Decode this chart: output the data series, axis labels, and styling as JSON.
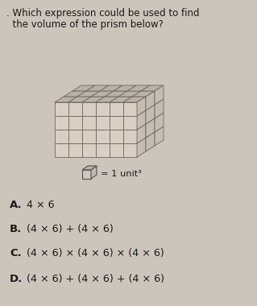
{
  "title_line1": ". Which expression could be used to find",
  "title_line2": "  the volume of the prism below?",
  "unit_label": "= 1 unit³",
  "options": [
    {
      "letter": "A.",
      "text": "4 × 6"
    },
    {
      "letter": "B.",
      "text": "(4 × 6) + (4 × 6)"
    },
    {
      "letter": "C.",
      "text": "(4 × 6) × (4 × 6) × (4 × 6)"
    },
    {
      "letter": "D.",
      "text": "(4 × 6) + (4 × 6) + (4 × 6)"
    }
  ],
  "bg_color": "#ccc5bc",
  "text_color": "#1a1a1a",
  "prism_rows": 4,
  "prism_cols": 6,
  "prism_depth": 3,
  "face_front": "#d8d0c4",
  "face_top": "#b8b2aa",
  "face_right": "#c4bdb4",
  "line_color": "#706860",
  "small_cube_front": "#d0c8bc",
  "small_cube_top": "#b8b2aa",
  "small_cube_right": "#c0b8b0"
}
